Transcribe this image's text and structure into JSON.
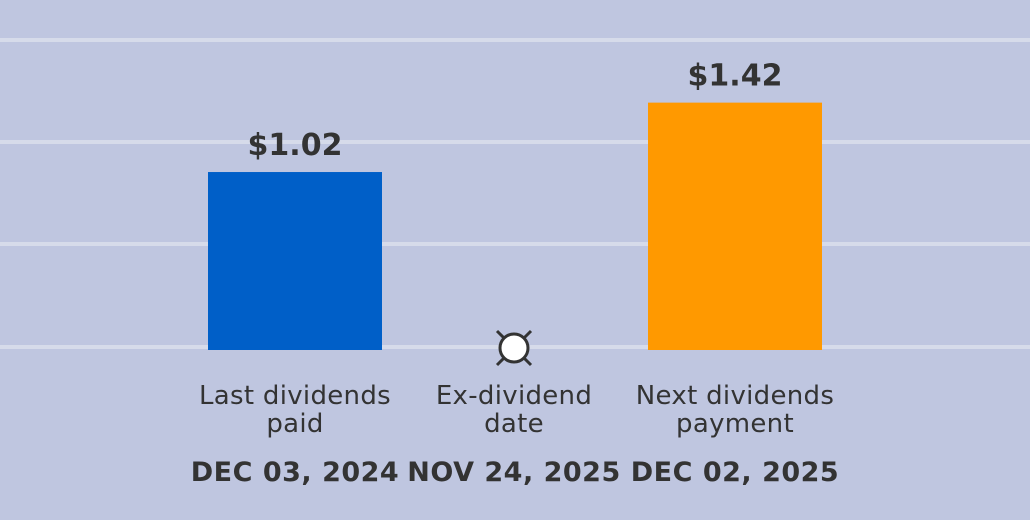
{
  "chart_data": {
    "type": "bar",
    "categories": [
      "Last dividends paid",
      "Ex-dividend date",
      "Next dividends payment"
    ],
    "dates": [
      "DEC 03, 2024",
      "NOV 24, 2025",
      "DEC 02, 2025"
    ],
    "values": [
      1.02,
      null,
      1.42
    ],
    "value_labels": [
      "$1.02",
      null,
      "$1.42"
    ],
    "colors": [
      "#005fc8",
      null,
      "#ff9900"
    ],
    "ylim": [
      0,
      2
    ]
  }
}
